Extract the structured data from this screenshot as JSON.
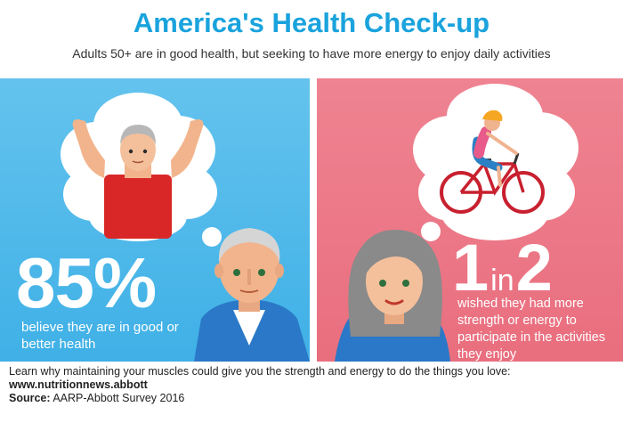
{
  "header": {
    "title": "America's Health Check-up",
    "subtitle": "Adults 50+ are in good health, but seeking to have more energy to enjoy daily activities"
  },
  "left_panel": {
    "stat": "85%",
    "description": "believe they are in good or better health",
    "background_color": "#4db8ea"
  },
  "right_panel": {
    "stat_number_1": "1",
    "stat_connector": "in",
    "stat_number_2": "2",
    "description": "wished they had more strength or energy to participate in the activities they enjoy",
    "background_color": "#ec7a89"
  },
  "footer": {
    "message": "Learn why maintaining your muscles could give you the strength and energy to do the things you love:",
    "url": "www.nutritionnews.abbott",
    "source_label": "Source:",
    "source_text": "AARP-Abbott Survey 2016"
  },
  "colors": {
    "title": "#1aa3dd",
    "shirt_red": "#d92727",
    "jacket_blue": "#2a78c7",
    "bike_red": "#c8202f"
  }
}
